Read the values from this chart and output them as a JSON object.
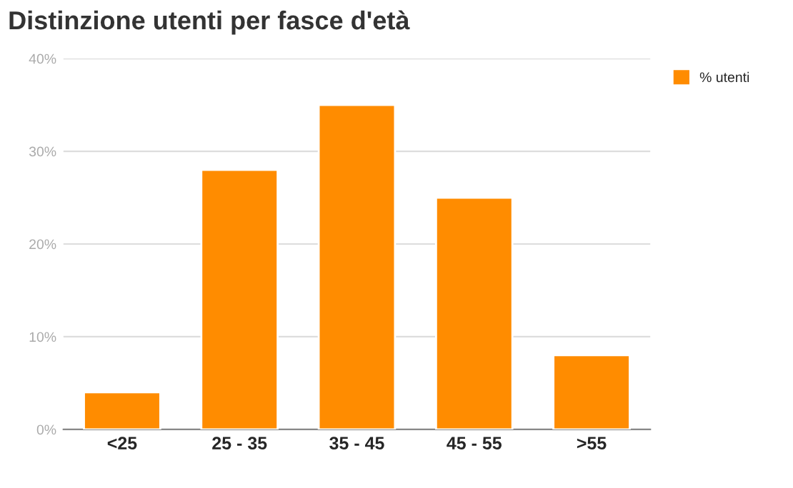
{
  "chart_data": {
    "type": "bar",
    "title": "Distinzione utenti per fasce d'età",
    "categories": [
      "<25",
      "25 - 35",
      "35 - 45",
      "45 - 55",
      ">55"
    ],
    "series": [
      {
        "name": "% utenti",
        "color": "#ff8c00",
        "values": [
          4,
          28,
          35,
          25,
          8
        ]
      }
    ],
    "ylim": [
      0,
      40
    ],
    "yticks": [
      {
        "value": 0,
        "label": "0%"
      },
      {
        "value": 10,
        "label": "10%"
      },
      {
        "value": 20,
        "label": "20%"
      },
      {
        "value": 30,
        "label": "30%"
      },
      {
        "value": 40,
        "label": "40%"
      }
    ],
    "grid": "y",
    "legend": "top right"
  }
}
